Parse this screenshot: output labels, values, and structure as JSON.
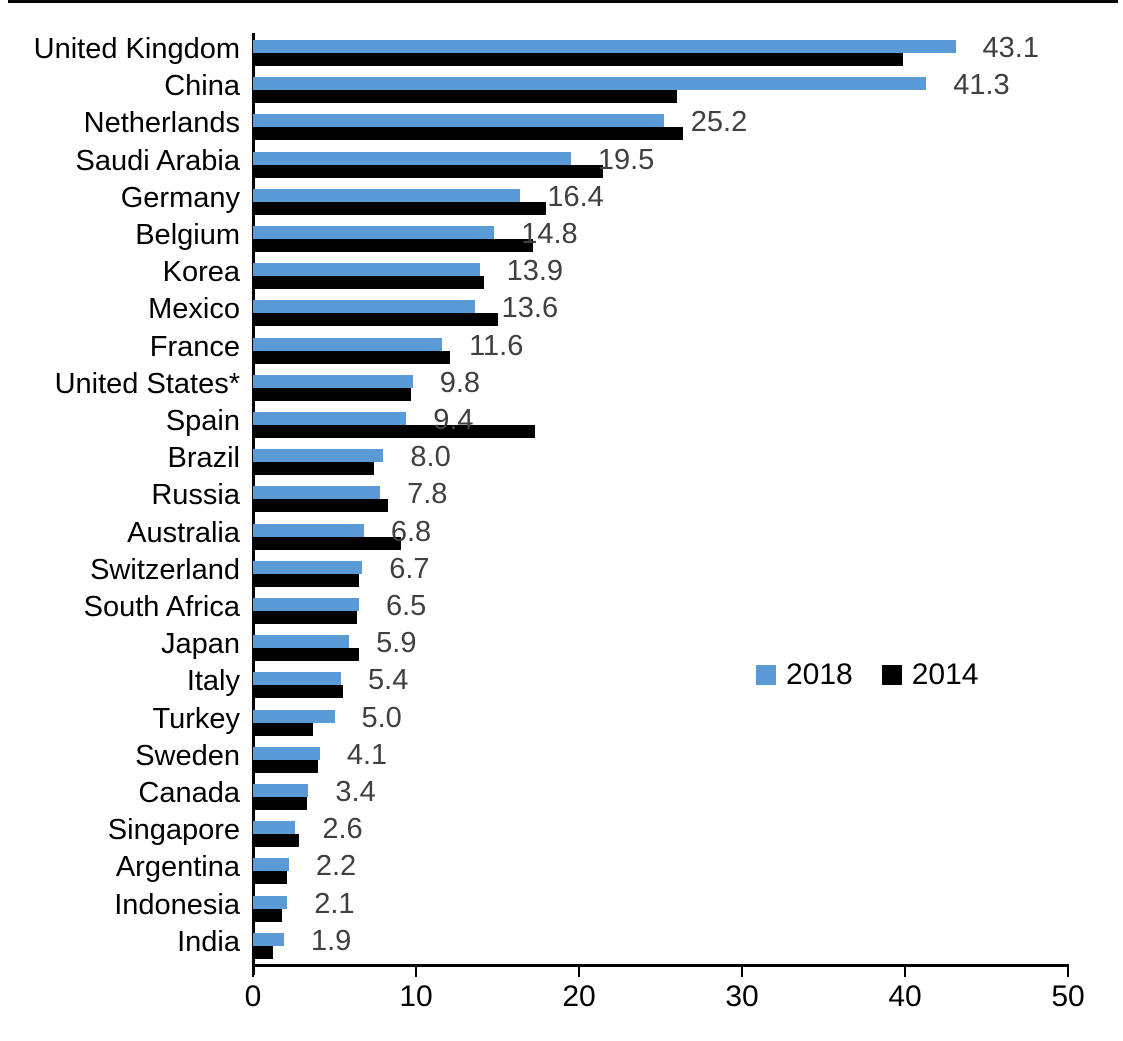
{
  "chart_data": {
    "type": "bar",
    "orientation": "horizontal",
    "title": "",
    "xlabel": "",
    "ylabel": "",
    "xlim": [
      0,
      50
    ],
    "x_ticks": [
      "0",
      "10",
      "20",
      "30",
      "40",
      "50"
    ],
    "grid": false,
    "legend_position": "inside-middle-right",
    "categories": [
      "United Kingdom",
      "China",
      "Netherlands",
      "Saudi Arabia",
      "Germany",
      "Belgium",
      "Korea",
      "Mexico",
      "France",
      "United States*",
      "Spain",
      "Brazil",
      "Russia",
      "Australia",
      "Switzerland",
      "South Africa",
      "Japan",
      "Italy",
      "Turkey",
      "Sweden",
      "Canada",
      "Singapore",
      "Argentina",
      "Indonesia",
      "India"
    ],
    "series": [
      {
        "name": "2018",
        "color": "#5b9bd5",
        "values": [
          43.1,
          41.3,
          25.2,
          19.5,
          16.4,
          14.8,
          13.9,
          13.6,
          11.6,
          9.8,
          9.4,
          8.0,
          7.8,
          6.8,
          6.7,
          6.5,
          5.9,
          5.4,
          5.0,
          4.1,
          3.4,
          2.6,
          2.2,
          2.1,
          1.9
        ],
        "data_labels": [
          "43.1",
          "41.3",
          "25.2",
          "19.5",
          "16.4",
          "14.8",
          "13.9",
          "13.6",
          "11.6",
          "9.8",
          "9.4",
          "8.0",
          "7.8",
          "6.8",
          "6.7",
          "6.5",
          "5.9",
          "5.4",
          "5.0",
          "4.1",
          "3.4",
          "2.6",
          "2.2",
          "2.1",
          "1.9"
        ]
      },
      {
        "name": "2014",
        "color": "#000000",
        "values": [
          39.9,
          26.0,
          26.4,
          21.5,
          18.0,
          17.2,
          14.2,
          15.0,
          12.1,
          9.7,
          17.3,
          7.4,
          8.3,
          9.1,
          6.5,
          6.4,
          6.5,
          5.5,
          3.7,
          4.0,
          3.3,
          2.8,
          2.1,
          1.8,
          1.2
        ]
      }
    ]
  },
  "legend": {
    "items": [
      {
        "label": "2018",
        "color": "#5b9bd5"
      },
      {
        "label": "2014",
        "color": "#000000"
      }
    ]
  },
  "colors": {
    "series_2018": "#5b9bd5",
    "series_2014": "#000000",
    "data_label": "#404040",
    "axis": "#000000"
  }
}
